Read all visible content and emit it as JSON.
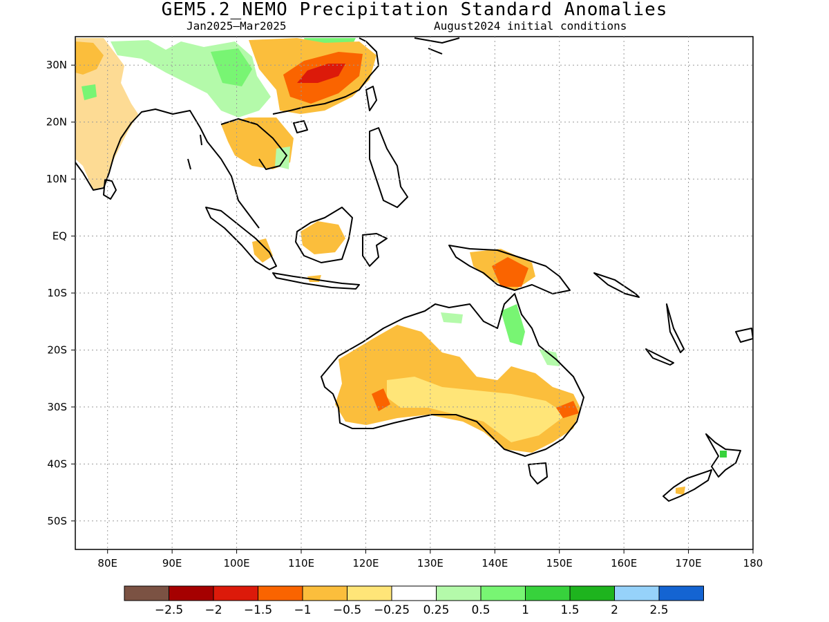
{
  "title": "GEM5.2_NEMO Precipitation Standard Anomalies",
  "subtitle_left": "Jan2025–Mar2025",
  "subtitle_right": "August2024 initial conditions",
  "map": {
    "lon_range": [
      75,
      180
    ],
    "lat_range": [
      -55,
      35
    ],
    "lat_ticks": [
      {
        "lat": 30,
        "label": "30N"
      },
      {
        "lat": 20,
        "label": "20N"
      },
      {
        "lat": 10,
        "label": "10N"
      },
      {
        "lat": 0,
        "label": "EQ"
      },
      {
        "lat": -10,
        "label": "10S"
      },
      {
        "lat": -20,
        "label": "20S"
      },
      {
        "lat": -30,
        "label": "30S"
      },
      {
        "lat": -40,
        "label": "40S"
      },
      {
        "lat": -50,
        "label": "50S"
      }
    ],
    "lon_ticks": [
      {
        "lon": 80,
        "label": "80E"
      },
      {
        "lon": 90,
        "label": "90E"
      },
      {
        "lon": 100,
        "label": "100E"
      },
      {
        "lon": 110,
        "label": "110E"
      },
      {
        "lon": 120,
        "label": "120E"
      },
      {
        "lon": 130,
        "label": "130E"
      },
      {
        "lon": 140,
        "label": "140E"
      },
      {
        "lon": 150,
        "label": "150E"
      },
      {
        "lon": 160,
        "label": "160E"
      },
      {
        "lon": 170,
        "label": "170E"
      },
      {
        "lon": 180,
        "label": "180"
      }
    ],
    "grid": true
  },
  "colorbar": {
    "colors": [
      "#7b5243",
      "#a50000",
      "#dc1a0a",
      "#fa6400",
      "#fbbe3c",
      "#ffe578",
      "#ffffff",
      "#b4faaa",
      "#78f573",
      "#37d23c",
      "#1eb41e",
      "#96d2fa",
      "#1464d2"
    ],
    "labels": [
      "−2.5",
      "−2",
      "−1.5",
      "−1",
      "−0.5",
      "−0.25",
      "0.25",
      "0.5",
      "1",
      "1.5",
      "2",
      "2.5"
    ]
  }
}
